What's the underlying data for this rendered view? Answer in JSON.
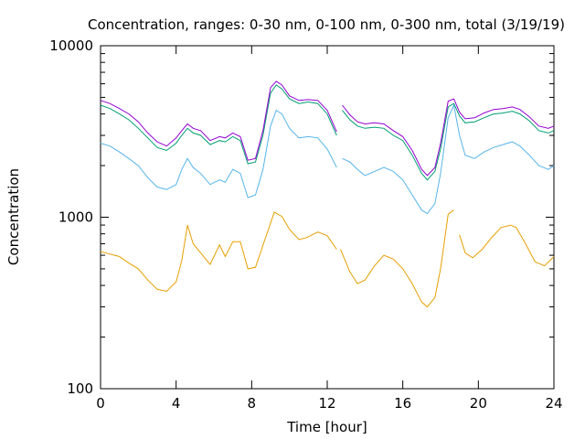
{
  "chart_data": {
    "type": "line",
    "title": "Concentration, ranges: 0-30 nm, 0-100 nm, 0-300 nm, total (3/19/19)",
    "xlabel": "Time [hour]",
    "ylabel": "Concentration",
    "xlim": [
      0,
      24
    ],
    "ylim": [
      100,
      10000
    ],
    "yscale": "log",
    "grid": false,
    "legend": "none",
    "xticks": [
      "0",
      "4",
      "8",
      "12",
      "16",
      "20",
      "24"
    ],
    "yticks": [
      "100",
      "1000",
      "10000"
    ],
    "series": [
      {
        "color": "#e69f00",
        "segments": [
          [
            [
              0,
              630
            ],
            [
              0.5,
              610
            ],
            [
              1.0,
              590
            ],
            [
              1.5,
              540
            ],
            [
              2.0,
              500
            ],
            [
              2.5,
              430
            ],
            [
              3.0,
              380
            ],
            [
              3.5,
              370
            ],
            [
              4.0,
              420
            ],
            [
              4.3,
              560
            ],
            [
              4.6,
              900
            ],
            [
              4.9,
              700
            ],
            [
              5.3,
              620
            ],
            [
              5.8,
              530
            ],
            [
              6.3,
              690
            ],
            [
              6.6,
              590
            ],
            [
              7.0,
              720
            ],
            [
              7.4,
              720
            ],
            [
              7.8,
              500
            ],
            [
              8.2,
              510
            ],
            [
              8.7,
              740
            ],
            [
              9.2,
              1070
            ],
            [
              9.6,
              1010
            ],
            [
              10.0,
              850
            ],
            [
              10.5,
              740
            ],
            [
              10.9,
              760
            ],
            [
              11.5,
              820
            ],
            [
              12.0,
              780
            ],
            [
              12.5,
              650
            ]
          ],
          [
            [
              12.7,
              650
            ],
            [
              13.2,
              480
            ],
            [
              13.6,
              410
            ],
            [
              14.0,
              430
            ],
            [
              14.5,
              520
            ],
            [
              15.0,
              600
            ],
            [
              15.5,
              570
            ],
            [
              16.0,
              500
            ],
            [
              16.5,
              410
            ],
            [
              17.0,
              320
            ],
            [
              17.3,
              300
            ],
            [
              17.7,
              340
            ],
            [
              18.0,
              500
            ],
            [
              18.4,
              1040
            ],
            [
              18.7,
              1100
            ]
          ],
          [
            [
              19.0,
              790
            ],
            [
              19.3,
              620
            ],
            [
              19.7,
              580
            ],
            [
              20.2,
              650
            ],
            [
              20.7,
              760
            ],
            [
              21.2,
              870
            ],
            [
              21.7,
              900
            ],
            [
              22.0,
              870
            ],
            [
              22.5,
              700
            ],
            [
              23.0,
              550
            ],
            [
              23.5,
              520
            ],
            [
              24.0,
              590
            ]
          ]
        ]
      },
      {
        "color": "#56b4e9",
        "segments": [
          [
            [
              0,
              2700
            ],
            [
              0.5,
              2600
            ],
            [
              1.0,
              2400
            ],
            [
              1.5,
              2200
            ],
            [
              2.0,
              2000
            ],
            [
              2.5,
              1700
            ],
            [
              3.0,
              1500
            ],
            [
              3.5,
              1450
            ],
            [
              4.0,
              1550
            ],
            [
              4.3,
              1900
            ],
            [
              4.6,
              2200
            ],
            [
              4.9,
              1950
            ],
            [
              5.3,
              1800
            ],
            [
              5.8,
              1550
            ],
            [
              6.3,
              1650
            ],
            [
              6.6,
              1600
            ],
            [
              7.0,
              1900
            ],
            [
              7.4,
              1800
            ],
            [
              7.8,
              1300
            ],
            [
              8.2,
              1350
            ],
            [
              8.6,
              1900
            ],
            [
              9.0,
              3400
            ],
            [
              9.3,
              4200
            ],
            [
              9.6,
              4000
            ],
            [
              10.0,
              3300
            ],
            [
              10.5,
              2900
            ],
            [
              11.0,
              2950
            ],
            [
              11.5,
              2900
            ],
            [
              12.0,
              2500
            ],
            [
              12.5,
              1950
            ]
          ],
          [
            [
              12.8,
              2200
            ],
            [
              13.2,
              2100
            ],
            [
              13.6,
              1900
            ],
            [
              14.0,
              1750
            ],
            [
              14.5,
              1850
            ],
            [
              15.0,
              1950
            ],
            [
              15.5,
              1850
            ],
            [
              16.0,
              1650
            ],
            [
              16.5,
              1350
            ],
            [
              17.0,
              1100
            ],
            [
              17.3,
              1050
            ],
            [
              17.7,
              1200
            ],
            [
              18.0,
              1800
            ],
            [
              18.4,
              3800
            ],
            [
              18.7,
              4500
            ],
            [
              19.0,
              3000
            ],
            [
              19.3,
              2300
            ],
            [
              19.8,
              2200
            ],
            [
              20.3,
              2400
            ],
            [
              20.8,
              2550
            ],
            [
              21.3,
              2650
            ],
            [
              21.8,
              2750
            ],
            [
              22.2,
              2600
            ],
            [
              22.7,
              2300
            ],
            [
              23.2,
              2000
            ],
            [
              23.7,
              1900
            ],
            [
              24.0,
              2000
            ]
          ]
        ]
      },
      {
        "color": "#009e73",
        "segments": [
          [
            [
              0,
              4500
            ],
            [
              0.5,
              4300
            ],
            [
              1.0,
              4000
            ],
            [
              1.5,
              3700
            ],
            [
              2.0,
              3300
            ],
            [
              2.5,
              2900
            ],
            [
              3.0,
              2550
            ],
            [
              3.5,
              2450
            ],
            [
              4.0,
              2700
            ],
            [
              4.3,
              3000
            ],
            [
              4.6,
              3300
            ],
            [
              4.9,
              3100
            ],
            [
              5.3,
              3000
            ],
            [
              5.8,
              2650
            ],
            [
              6.3,
              2800
            ],
            [
              6.6,
              2750
            ],
            [
              7.0,
              2950
            ],
            [
              7.4,
              2800
            ],
            [
              7.8,
              2050
            ],
            [
              8.2,
              2100
            ],
            [
              8.6,
              3000
            ],
            [
              9.0,
              5300
            ],
            [
              9.3,
              5900
            ],
            [
              9.6,
              5600
            ],
            [
              10.0,
              4900
            ],
            [
              10.5,
              4600
            ],
            [
              11.0,
              4700
            ],
            [
              11.5,
              4600
            ],
            [
              12.0,
              4000
            ],
            [
              12.5,
              3000
            ]
          ],
          [
            [
              12.8,
              4200
            ],
            [
              13.2,
              3700
            ],
            [
              13.6,
              3400
            ],
            [
              14.0,
              3300
            ],
            [
              14.5,
              3350
            ],
            [
              15.0,
              3300
            ],
            [
              15.5,
              3000
            ],
            [
              16.0,
              2800
            ],
            [
              16.5,
              2300
            ],
            [
              17.0,
              1800
            ],
            [
              17.3,
              1650
            ],
            [
              17.7,
              1850
            ],
            [
              18.0,
              2500
            ],
            [
              18.4,
              4400
            ],
            [
              18.7,
              4600
            ],
            [
              19.0,
              3900
            ],
            [
              19.3,
              3550
            ],
            [
              19.8,
              3600
            ],
            [
              20.3,
              3800
            ],
            [
              20.8,
              4000
            ],
            [
              21.3,
              4050
            ],
            [
              21.8,
              4150
            ],
            [
              22.2,
              4000
            ],
            [
              22.7,
              3650
            ],
            [
              23.2,
              3200
            ],
            [
              23.7,
              3100
            ],
            [
              24.0,
              3200
            ]
          ]
        ]
      },
      {
        "color": "#9400d3",
        "segments": [
          [
            [
              0,
              4800
            ],
            [
              0.5,
              4600
            ],
            [
              1.0,
              4300
            ],
            [
              1.5,
              4000
            ],
            [
              2.0,
              3600
            ],
            [
              2.5,
              3100
            ],
            [
              3.0,
              2750
            ],
            [
              3.5,
              2600
            ],
            [
              4.0,
              2900
            ],
            [
              4.3,
              3200
            ],
            [
              4.6,
              3500
            ],
            [
              4.9,
              3300
            ],
            [
              5.3,
              3200
            ],
            [
              5.8,
              2800
            ],
            [
              6.3,
              2950
            ],
            [
              6.6,
              2900
            ],
            [
              7.0,
              3100
            ],
            [
              7.4,
              2950
            ],
            [
              7.8,
              2150
            ],
            [
              8.2,
              2200
            ],
            [
              8.6,
              3200
            ],
            [
              9.0,
              5700
            ],
            [
              9.3,
              6200
            ],
            [
              9.6,
              5900
            ],
            [
              10.0,
              5100
            ],
            [
              10.5,
              4800
            ],
            [
              11.0,
              4850
            ],
            [
              11.5,
              4800
            ],
            [
              12.0,
              4200
            ],
            [
              12.5,
              3150
            ]
          ],
          [
            [
              12.8,
              4500
            ],
            [
              13.2,
              3950
            ],
            [
              13.6,
              3600
            ],
            [
              14.0,
              3500
            ],
            [
              14.5,
              3550
            ],
            [
              15.0,
              3500
            ],
            [
              15.5,
              3200
            ],
            [
              16.0,
              2950
            ],
            [
              16.5,
              2450
            ],
            [
              17.0,
              1900
            ],
            [
              17.3,
              1750
            ],
            [
              17.7,
              1950
            ],
            [
              18.0,
              2700
            ],
            [
              18.4,
              4750
            ],
            [
              18.7,
              4900
            ],
            [
              19.0,
              4100
            ],
            [
              19.3,
              3750
            ],
            [
              19.8,
              3800
            ],
            [
              20.3,
              4050
            ],
            [
              20.8,
              4250
            ],
            [
              21.3,
              4300
            ],
            [
              21.8,
              4400
            ],
            [
              22.2,
              4250
            ],
            [
              22.7,
              3850
            ],
            [
              23.2,
              3400
            ],
            [
              23.7,
              3300
            ],
            [
              24.0,
              3400
            ]
          ]
        ]
      }
    ]
  }
}
